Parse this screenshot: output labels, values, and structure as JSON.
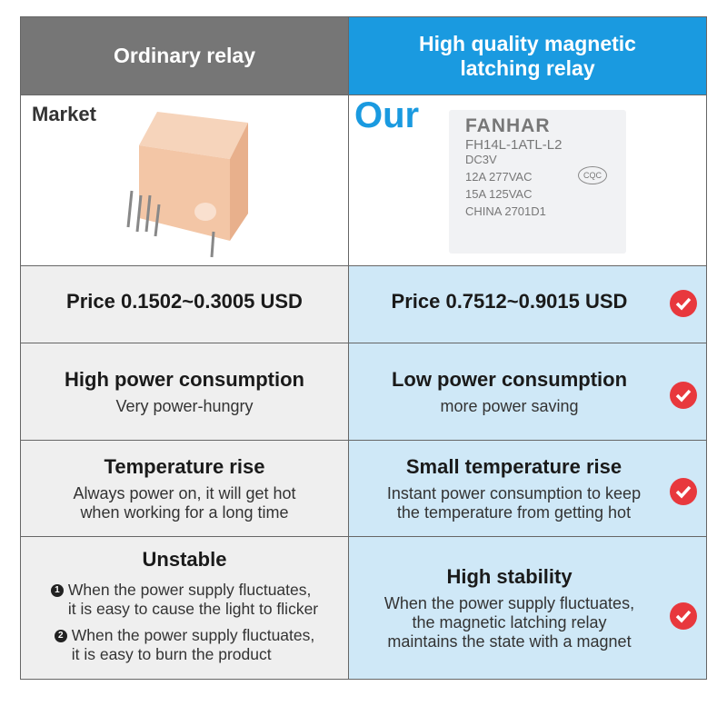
{
  "table": {
    "header": {
      "left": "Ordinary relay",
      "right": [
        "High quality magnetic",
        "latching relay"
      ]
    },
    "image_row": {
      "left_label": "Market",
      "right_label": "Our",
      "relay_print": [
        "FANHAR",
        "FH14L-1ATL-L2",
        "DC3V",
        "12A 277VAC",
        "15A 125VAC",
        "CHINA 2701D1"
      ],
      "cert": "CQC"
    },
    "rows": [
      {
        "left": {
          "title": "Price 0.1502~0.3005 USD"
        },
        "right": {
          "title": "Price 0.7512~0.9015 USD"
        }
      },
      {
        "left": {
          "title": "High power consumption",
          "lines": [
            "Very power-hungry"
          ]
        },
        "right": {
          "title": "Low power consumption",
          "lines": [
            "more power saving"
          ]
        }
      },
      {
        "left": {
          "title": "Temperature rise",
          "lines": [
            "Always power on, it will get hot",
            "when working for a long time"
          ]
        },
        "right": {
          "title": "Small temperature rise",
          "lines": [
            "Instant power consumption to keep",
            "the temperature from getting hot"
          ]
        }
      },
      {
        "left": {
          "title": "Unstable",
          "items": [
            {
              "marker": "1",
              "lines": [
                "When the power supply fluctuates,",
                "it is easy to cause the light to flicker"
              ]
            },
            {
              "marker": "2",
              "lines": [
                "When the power supply fluctuates,",
                "it is easy to burn the product"
              ]
            }
          ]
        },
        "right": {
          "title": "High stability",
          "lines": [
            "When the power supply fluctuates,",
            "the magnetic latching relay",
            "maintains the state with a magnet"
          ]
        }
      }
    ]
  }
}
